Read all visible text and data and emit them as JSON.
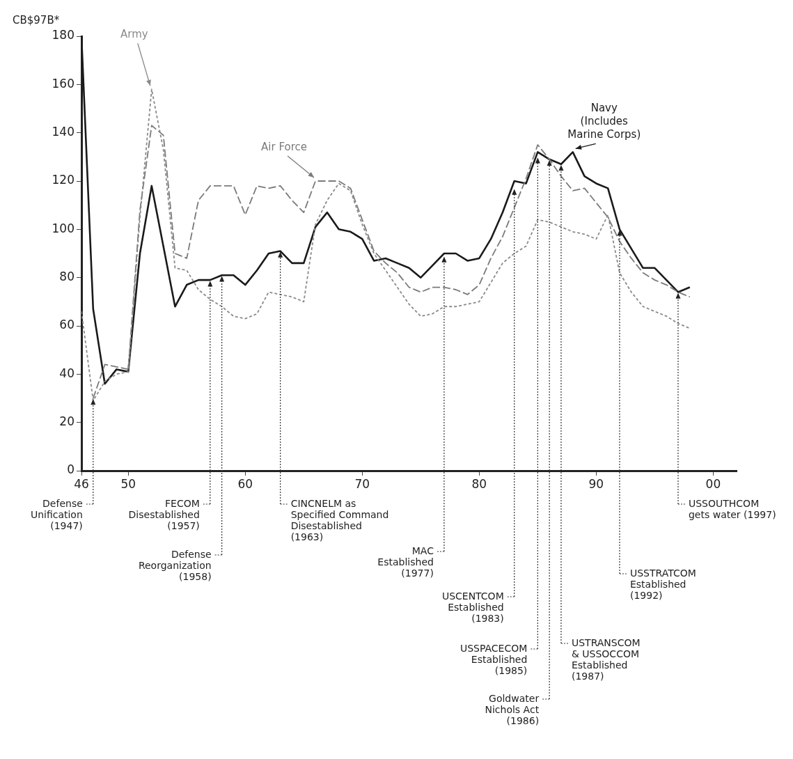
{
  "chart_data": {
    "type": "line",
    "ylabel": "CB$97B*",
    "x": [
      1946,
      1947,
      1948,
      1949,
      1950,
      1951,
      1952,
      1953,
      1954,
      1955,
      1956,
      1957,
      1958,
      1959,
      1960,
      1961,
      1962,
      1963,
      1964,
      1965,
      1966,
      1967,
      1968,
      1969,
      1970,
      1971,
      1972,
      1973,
      1974,
      1975,
      1976,
      1977,
      1978,
      1979,
      1980,
      1981,
      1982,
      1983,
      1984,
      1985,
      1986,
      1987,
      1988,
      1989,
      1990,
      1991,
      1992,
      1993,
      1994,
      1995,
      1996,
      1997,
      1998
    ],
    "xlim": [
      1946,
      2002
    ],
    "xticks": [
      {
        "value": 1946,
        "label": "46"
      },
      {
        "value": 1950,
        "label": "50"
      },
      {
        "value": 1960,
        "label": "60"
      },
      {
        "value": 1970,
        "label": "70"
      },
      {
        "value": 1980,
        "label": "80"
      },
      {
        "value": 1990,
        "label": "90"
      },
      {
        "value": 2000,
        "label": "00"
      }
    ],
    "ylim": [
      0,
      180
    ],
    "yticks": [
      0,
      20,
      40,
      60,
      80,
      100,
      120,
      140,
      160,
      180
    ],
    "grid": false,
    "series": [
      {
        "name": "Army",
        "color": "#8a8a8a",
        "line_style": "dotted",
        "values": [
          66,
          29,
          37,
          40,
          41,
          105,
          158,
          133,
          84,
          83,
          75,
          71,
          68,
          64,
          63,
          65,
          74,
          73,
          72,
          70,
          102,
          112,
          119,
          116,
          102,
          90,
          83,
          76,
          69,
          64,
          65,
          68,
          68,
          69,
          70,
          78,
          86,
          90,
          93,
          104,
          103,
          101,
          99,
          98,
          96,
          106,
          82,
          74,
          68,
          66,
          64,
          61,
          59
        ]
      },
      {
        "name": "Air Force",
        "color": "#7a7a7a",
        "line_style": "dashed",
        "values": [
          null,
          30,
          44,
          43,
          42,
          108,
          143,
          139,
          90,
          88,
          112,
          118,
          118,
          118,
          106,
          118,
          117,
          118,
          112,
          107,
          120,
          120,
          120,
          117,
          104,
          91,
          86,
          82,
          76,
          74,
          76,
          76,
          75,
          73,
          77,
          88,
          97,
          109,
          121,
          135,
          129,
          122,
          116,
          117,
          111,
          105,
          95,
          88,
          82,
          79,
          77,
          74,
          72
        ]
      },
      {
        "name": "Navy\n(Includes\nMarine Corps)",
        "color": "#1a1a1a",
        "line_style": "solid",
        "values": [
          180,
          67,
          36,
          42,
          41,
          90,
          118,
          93,
          68,
          77,
          79,
          79,
          81,
          81,
          77,
          83,
          90,
          91,
          86,
          86,
          101,
          107,
          100,
          99,
          96,
          87,
          88,
          86,
          84,
          80,
          85,
          90,
          90,
          87,
          88,
          96,
          107,
          120,
          119,
          132,
          129,
          127,
          132,
          122,
          119,
          117,
          100,
          92,
          84,
          84,
          79,
          74,
          76
        ]
      }
    ],
    "annotations": [
      {
        "text": "Defense\nUnification\n(1947)",
        "x": 1947,
        "y": 30
      },
      {
        "text": "FECOM\nDisestablished\n(1957)",
        "x": 1957,
        "y": 79
      },
      {
        "text": "Defense\nReorganization\n(1958)",
        "x": 1958,
        "y": 81
      },
      {
        "text": "CINCNELM as\nSpecified Command\nDisestablished\n(1963)",
        "x": 1963,
        "y": 91
      },
      {
        "text": "MAC\nEstablished\n(1977)",
        "x": 1977,
        "y": 89
      },
      {
        "text": "USCENTCOM\nEstablished\n(1983)",
        "x": 1983,
        "y": 117
      },
      {
        "text": "USSPACECOM\nEstablished\n(1985)",
        "x": 1985,
        "y": 130
      },
      {
        "text": "Goldwater\nNichols Act\n(1986)",
        "x": 1986,
        "y": 129
      },
      {
        "text": "USTRANSCOM\n& USSOCCOM\nEstablished\n(1987)",
        "x": 1987,
        "y": 127
      },
      {
        "text": "USSTRATCOM\nEstablished\n(1992)",
        "x": 1992,
        "y": 100
      },
      {
        "text": "USSOUTHCOM\ngets water (1997)",
        "x": 1997,
        "y": 74
      }
    ]
  }
}
